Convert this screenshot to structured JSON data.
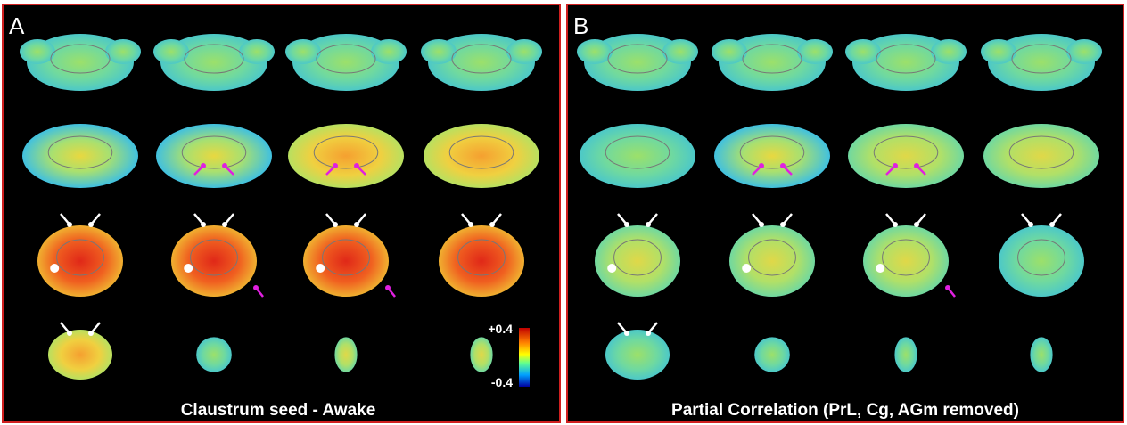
{
  "panels": [
    {
      "label": "A",
      "caption": "Claustrum seed - Awake",
      "colorbar": {
        "max_label": "+0.4",
        "min_label": "-0.4"
      }
    },
    {
      "label": "B",
      "caption": "Partial Correlation (PrL, Cg, AGm removed)"
    }
  ]
}
